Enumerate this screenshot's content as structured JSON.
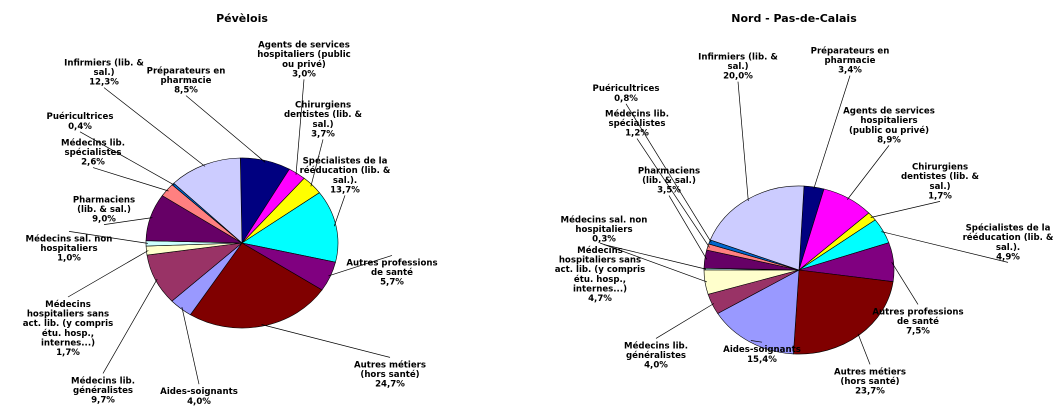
{
  "chart_data": [
    {
      "type": "pie",
      "title": "Pévèlois",
      "slices": [
        {
          "label": [
            "Préparateurs en",
            "pharmacie"
          ],
          "value": 8.5,
          "value_label": "8,5%",
          "color": "#000080"
        },
        {
          "label": [
            "Agents de services",
            "hospitaliers (public",
            "ou privé)"
          ],
          "value": 3.0,
          "value_label": "3,0%",
          "color": "#ff00ff"
        },
        {
          "label": [
            "Chirurgiens",
            "dentistes (lib. &",
            "sal.)"
          ],
          "value": 3.7,
          "value_label": "3,7%",
          "color": "#ffff00"
        },
        {
          "label": [
            "Spécialistes de la",
            "rééducation (lib. &",
            "sal.)."
          ],
          "value": 13.7,
          "value_label": "13,7%",
          "color": "#00ffff"
        },
        {
          "label": [
            "Autres professions",
            "de santé"
          ],
          "value": 5.7,
          "value_label": "5,7%",
          "color": "#800080"
        },
        {
          "label": [
            "Autres métiers",
            "(hors santé)"
          ],
          "value": 24.7,
          "value_label": "24,7%",
          "color": "#800000"
        },
        {
          "label": [
            "Aides-soignants"
          ],
          "value": 4.0,
          "value_label": "4,0%",
          "color": "#9999ff"
        },
        {
          "label": [
            "Médecins lib.",
            "généralistes"
          ],
          "value": 9.7,
          "value_label": "9,7%",
          "color": "#993366"
        },
        {
          "label": [
            "Médecins",
            "hospitaliers sans",
            "act. lib. (y compris",
            "étu. hosp.,",
            "internes...)"
          ],
          "value": 1.7,
          "value_label": "1,7%",
          "color": "#ffffcc"
        },
        {
          "label": [
            "Médecins sal. non",
            "hospitaliers"
          ],
          "value": 1.0,
          "value_label": "1,0%",
          "color": "#ccffff"
        },
        {
          "label": [
            "Pharmaciens",
            "(lib. & sal.)"
          ],
          "value": 9.0,
          "value_label": "9,0%",
          "color": "#660066"
        },
        {
          "label": [
            "Médecins lib.",
            "spécialistes"
          ],
          "value": 2.6,
          "value_label": "2,6%",
          "color": "#ff8080"
        },
        {
          "label": [
            "Puéricultrices"
          ],
          "value": 0.4,
          "value_label": "0,4%",
          "color": "#0066cc"
        },
        {
          "label": [
            "Infirmiers (lib. &",
            "sal.)"
          ],
          "value": 12.3,
          "value_label": "12,3%",
          "color": "#ccccff"
        }
      ]
    },
    {
      "type": "pie",
      "title": "Nord - Pas-de-Calais",
      "slices": [
        {
          "label": [
            "Préparateurs en",
            "pharmacie"
          ],
          "value": 3.4,
          "value_label": "3,4%",
          "color": "#000080"
        },
        {
          "label": [
            "Agents de services",
            "hospitaliers",
            "(public ou privé)"
          ],
          "value": 8.9,
          "value_label": "8,9%",
          "color": "#ff00ff"
        },
        {
          "label": [
            "Chirurgiens",
            "dentistes (lib. &",
            "sal.)"
          ],
          "value": 1.7,
          "value_label": "1,7%",
          "color": "#ffff00"
        },
        {
          "label": [
            "Spécialistes de la",
            "rééducation (lib. &",
            "sal.)."
          ],
          "value": 4.9,
          "value_label": "4,9%",
          "color": "#00ffff"
        },
        {
          "label": [
            "Autres professions",
            "de santé"
          ],
          "value": 7.5,
          "value_label": "7,5%",
          "color": "#800080"
        },
        {
          "label": [
            "Autres métiers",
            "(hors santé)"
          ],
          "value": 23.7,
          "value_label": "23,7%",
          "color": "#800000"
        },
        {
          "label": [
            "Aides-soignants"
          ],
          "value": 15.4,
          "value_label": "15,4%",
          "color": "#9999ff"
        },
        {
          "label": [
            "Médecins lib.",
            "généralistes"
          ],
          "value": 4.0,
          "value_label": "4,0%",
          "color": "#993366"
        },
        {
          "label": [
            "Médecins",
            "hospitaliers sans",
            "act. lib. (y compris",
            "étu. hosp.,",
            "internes...)"
          ],
          "value": 4.7,
          "value_label": "4,7%",
          "color": "#ffffcc"
        },
        {
          "label": [
            "Médecins sal. non",
            "hospitaliers"
          ],
          "value": 0.3,
          "value_label": "0,3%",
          "color": "#ccffff"
        },
        {
          "label": [
            "Pharmaciens",
            "(lib. & sal.)"
          ],
          "value": 3.5,
          "value_label": "3,5%",
          "color": "#660066"
        },
        {
          "label": [
            "Médecins lib.",
            "spécialistes"
          ],
          "value": 1.2,
          "value_label": "1,2%",
          "color": "#ff8080"
        },
        {
          "label": [
            "Puéricultrices"
          ],
          "value": 0.8,
          "value_label": "0,8%",
          "color": "#0066cc"
        },
        {
          "label": [
            "Infirmiers (lib. &",
            "sal.)"
          ],
          "value": 20.0,
          "value_label": "20,0%",
          "color": "#ccccff"
        }
      ]
    }
  ]
}
